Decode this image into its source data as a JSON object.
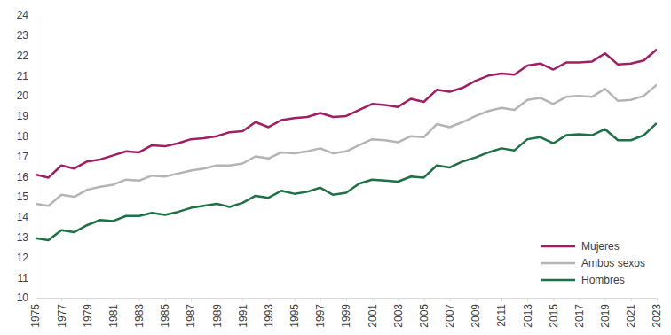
{
  "chart_data": {
    "type": "line",
    "x": [
      1975,
      1976,
      1977,
      1978,
      1979,
      1980,
      1981,
      1982,
      1983,
      1984,
      1985,
      1986,
      1987,
      1988,
      1989,
      1990,
      1991,
      1992,
      1993,
      1994,
      1995,
      1996,
      1997,
      1998,
      1999,
      2000,
      2001,
      2002,
      2003,
      2004,
      2005,
      2006,
      2007,
      2008,
      2009,
      2010,
      2011,
      2012,
      2013,
      2014,
      2015,
      2016,
      2017,
      2018,
      2019,
      2020,
      2021,
      2022,
      2023
    ],
    "series": [
      {
        "name": "Mujeres",
        "color": "#9e1f63",
        "values": [
          16.1,
          15.95,
          16.55,
          16.4,
          16.75,
          16.85,
          17.05,
          17.25,
          17.2,
          17.55,
          17.5,
          17.65,
          17.85,
          17.9,
          18.0,
          18.2,
          18.25,
          18.7,
          18.45,
          18.8,
          18.9,
          18.95,
          19.15,
          18.95,
          19.0,
          19.3,
          19.6,
          19.55,
          19.45,
          19.85,
          19.7,
          20.3,
          20.2,
          20.4,
          20.75,
          21.0,
          21.1,
          21.05,
          21.5,
          21.6,
          21.3,
          21.65,
          21.65,
          21.7,
          22.1,
          21.55,
          21.6,
          21.75,
          22.3
        ]
      },
      {
        "name": "Ambos sexos",
        "color": "#b4b4b4",
        "values": [
          14.65,
          14.55,
          15.1,
          15.0,
          15.35,
          15.5,
          15.6,
          15.85,
          15.8,
          16.05,
          16.0,
          16.15,
          16.3,
          16.4,
          16.55,
          16.55,
          16.65,
          17.0,
          16.9,
          17.2,
          17.15,
          17.25,
          17.4,
          17.15,
          17.25,
          17.55,
          17.85,
          17.8,
          17.7,
          18.0,
          17.95,
          18.6,
          18.45,
          18.7,
          19.0,
          19.25,
          19.4,
          19.3,
          19.8,
          19.9,
          19.6,
          19.95,
          20.0,
          19.95,
          20.35,
          19.75,
          19.8,
          20.0,
          20.55
        ]
      },
      {
        "name": "Hombres",
        "color": "#1e7145",
        "values": [
          12.95,
          12.85,
          13.35,
          13.25,
          13.6,
          13.85,
          13.8,
          14.05,
          14.05,
          14.2,
          14.1,
          14.25,
          14.45,
          14.55,
          14.65,
          14.5,
          14.7,
          15.05,
          14.95,
          15.3,
          15.15,
          15.25,
          15.45,
          15.1,
          15.2,
          15.65,
          15.85,
          15.8,
          15.75,
          16.0,
          15.95,
          16.55,
          16.45,
          16.75,
          16.95,
          17.2,
          17.4,
          17.3,
          17.85,
          17.95,
          17.65,
          18.05,
          18.1,
          18.05,
          18.35,
          17.8,
          17.8,
          18.05,
          18.65
        ]
      }
    ],
    "xlim": [
      1975,
      2023
    ],
    "xticks": [
      1975,
      1977,
      1979,
      1981,
      1983,
      1985,
      1987,
      1989,
      1991,
      1993,
      1995,
      1997,
      1999,
      2001,
      2003,
      2005,
      2007,
      2009,
      2011,
      2013,
      2015,
      2017,
      2019,
      2021,
      2023
    ],
    "ylim": [
      10,
      24
    ],
    "yticks": [
      10,
      11,
      12,
      13,
      14,
      15,
      16,
      17,
      18,
      19,
      20,
      21,
      22,
      23,
      24
    ],
    "grid": false,
    "legend": "lower right"
  }
}
